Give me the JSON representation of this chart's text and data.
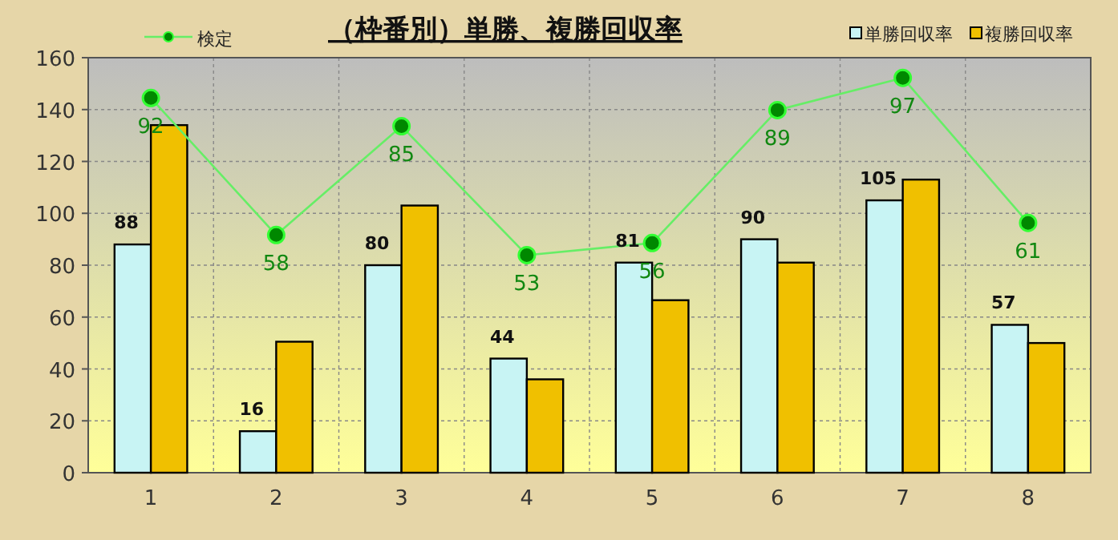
{
  "chart_data": {
    "type": "bar",
    "title": "（枠番別）単勝、複勝回収率",
    "categories": [
      "1",
      "2",
      "3",
      "4",
      "5",
      "6",
      "7",
      "8"
    ],
    "series": [
      {
        "name": "単勝回収率",
        "color": "#c8f4f4",
        "values": [
          88,
          16,
          80,
          44,
          81,
          90,
          105,
          57
        ],
        "value_labels": [
          "88",
          "16",
          "80",
          "44",
          "81",
          "90",
          "105",
          "57"
        ]
      },
      {
        "name": "複勝回収率",
        "color": "#f0c000",
        "values": [
          134,
          50.5,
          103,
          36,
          66.5,
          81,
          113,
          50
        ]
      },
      {
        "name": "検定",
        "type": "line",
        "axis": "y2",
        "color": "#66ee66",
        "marker": "circle",
        "values": [
          92,
          58,
          85,
          53,
          56,
          89,
          97,
          61
        ],
        "value_labels": [
          "92",
          "58",
          "85",
          "53",
          "56",
          "89",
          "97",
          "61"
        ]
      }
    ],
    "ylim": [
      0,
      160
    ],
    "yticks": [
      0,
      20,
      40,
      60,
      80,
      100,
      120,
      140,
      160
    ],
    "y2lim": [
      -1,
      102
    ],
    "tick_labels": "xy",
    "grid": true,
    "legend": "top"
  }
}
